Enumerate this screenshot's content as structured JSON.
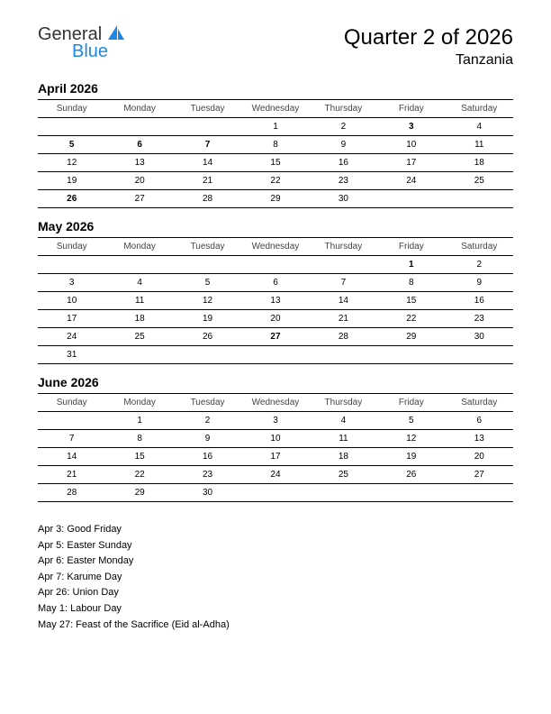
{
  "logo": {
    "general": "General",
    "blue": "Blue",
    "icon_color": "#1e88e5"
  },
  "title": {
    "main": "Quarter 2 of 2026",
    "sub": "Tanzania"
  },
  "dayHeaders": [
    "Sunday",
    "Monday",
    "Tuesday",
    "Wednesday",
    "Thursday",
    "Friday",
    "Saturday"
  ],
  "months": [
    {
      "name": "April 2026",
      "weeks": [
        [
          {
            "d": ""
          },
          {
            "d": ""
          },
          {
            "d": ""
          },
          {
            "d": "1"
          },
          {
            "d": "2"
          },
          {
            "d": "3",
            "h": true
          },
          {
            "d": "4"
          }
        ],
        [
          {
            "d": "5",
            "h": true
          },
          {
            "d": "6",
            "h": true
          },
          {
            "d": "7",
            "h": true
          },
          {
            "d": "8"
          },
          {
            "d": "9"
          },
          {
            "d": "10"
          },
          {
            "d": "11"
          }
        ],
        [
          {
            "d": "12"
          },
          {
            "d": "13"
          },
          {
            "d": "14"
          },
          {
            "d": "15"
          },
          {
            "d": "16"
          },
          {
            "d": "17"
          },
          {
            "d": "18"
          }
        ],
        [
          {
            "d": "19"
          },
          {
            "d": "20"
          },
          {
            "d": "21"
          },
          {
            "d": "22"
          },
          {
            "d": "23"
          },
          {
            "d": "24"
          },
          {
            "d": "25"
          }
        ],
        [
          {
            "d": "26",
            "h": true
          },
          {
            "d": "27"
          },
          {
            "d": "28"
          },
          {
            "d": "29"
          },
          {
            "d": "30"
          },
          {
            "d": ""
          },
          {
            "d": ""
          }
        ]
      ]
    },
    {
      "name": "May 2026",
      "weeks": [
        [
          {
            "d": ""
          },
          {
            "d": ""
          },
          {
            "d": ""
          },
          {
            "d": ""
          },
          {
            "d": ""
          },
          {
            "d": "1",
            "h": true
          },
          {
            "d": "2"
          }
        ],
        [
          {
            "d": "3"
          },
          {
            "d": "4"
          },
          {
            "d": "5"
          },
          {
            "d": "6"
          },
          {
            "d": "7"
          },
          {
            "d": "8"
          },
          {
            "d": "9"
          }
        ],
        [
          {
            "d": "10"
          },
          {
            "d": "11"
          },
          {
            "d": "12"
          },
          {
            "d": "13"
          },
          {
            "d": "14"
          },
          {
            "d": "15"
          },
          {
            "d": "16"
          }
        ],
        [
          {
            "d": "17"
          },
          {
            "d": "18"
          },
          {
            "d": "19"
          },
          {
            "d": "20"
          },
          {
            "d": "21"
          },
          {
            "d": "22"
          },
          {
            "d": "23"
          }
        ],
        [
          {
            "d": "24"
          },
          {
            "d": "25"
          },
          {
            "d": "26"
          },
          {
            "d": "27",
            "h": true
          },
          {
            "d": "28"
          },
          {
            "d": "29"
          },
          {
            "d": "30"
          }
        ],
        [
          {
            "d": "31"
          },
          {
            "d": ""
          },
          {
            "d": ""
          },
          {
            "d": ""
          },
          {
            "d": ""
          },
          {
            "d": ""
          },
          {
            "d": ""
          }
        ]
      ]
    },
    {
      "name": "June 2026",
      "weeks": [
        [
          {
            "d": ""
          },
          {
            "d": "1"
          },
          {
            "d": "2"
          },
          {
            "d": "3"
          },
          {
            "d": "4"
          },
          {
            "d": "5"
          },
          {
            "d": "6"
          }
        ],
        [
          {
            "d": "7"
          },
          {
            "d": "8"
          },
          {
            "d": "9"
          },
          {
            "d": "10"
          },
          {
            "d": "11"
          },
          {
            "d": "12"
          },
          {
            "d": "13"
          }
        ],
        [
          {
            "d": "14"
          },
          {
            "d": "15"
          },
          {
            "d": "16"
          },
          {
            "d": "17"
          },
          {
            "d": "18"
          },
          {
            "d": "19"
          },
          {
            "d": "20"
          }
        ],
        [
          {
            "d": "21"
          },
          {
            "d": "22"
          },
          {
            "d": "23"
          },
          {
            "d": "24"
          },
          {
            "d": "25"
          },
          {
            "d": "26"
          },
          {
            "d": "27"
          }
        ],
        [
          {
            "d": "28"
          },
          {
            "d": "29"
          },
          {
            "d": "30"
          },
          {
            "d": ""
          },
          {
            "d": ""
          },
          {
            "d": ""
          },
          {
            "d": ""
          }
        ]
      ]
    }
  ],
  "holidays": [
    "Apr 3: Good Friday",
    "Apr 5: Easter Sunday",
    "Apr 6: Easter Monday",
    "Apr 7: Karume Day",
    "Apr 26: Union Day",
    "May 1: Labour Day",
    "May 27: Feast of the Sacrifice (Eid al-Adha)"
  ],
  "colors": {
    "holiday_text": "#cc0000",
    "text": "#000000",
    "header_text": "#444444",
    "border": "#000000",
    "background": "#ffffff"
  }
}
